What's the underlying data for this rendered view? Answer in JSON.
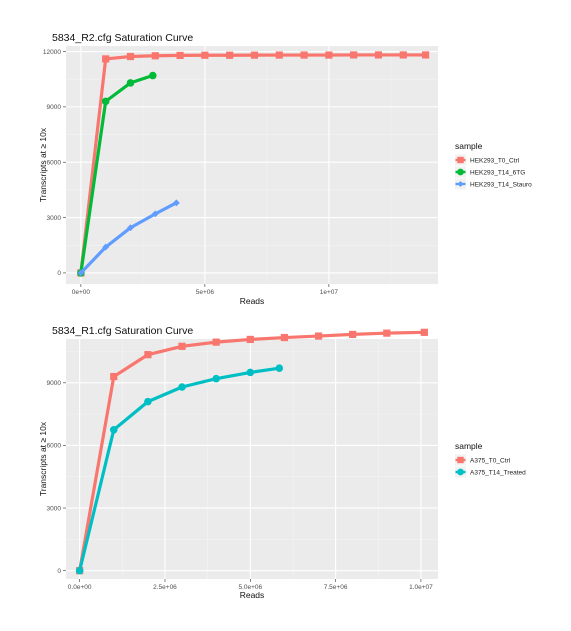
{
  "chart_data": [
    {
      "type": "line",
      "title": "5834_R2.cfg Saturation Curve",
      "xlabel": "Reads",
      "ylabel": "Transcripts at ≥ 10x",
      "xlim": [
        -600000,
        14400000
      ],
      "ylim": [
        -600,
        12300
      ],
      "xticks": [
        0,
        5000000,
        10000000
      ],
      "xtick_labels": [
        "0e+00",
        "5e+06",
        "1e+07"
      ],
      "yticks": [
        0,
        3000,
        6000,
        9000,
        12000
      ],
      "ytick_labels": [
        "0",
        "3000",
        "6000",
        "9000",
        "12000"
      ],
      "grid": true,
      "legend": {
        "title": "sample",
        "position": "right"
      },
      "series": [
        {
          "name": "HEK293_T0_Ctrl",
          "color": "#F8766D",
          "marker": "square",
          "x": [
            0,
            1000000,
            2000000,
            3000000,
            4000000,
            5000000,
            6000000,
            7000000,
            8000000,
            9000000,
            10000000,
            11000000,
            12000000,
            13000000,
            13900000
          ],
          "y": [
            0,
            11600,
            11730,
            11770,
            11790,
            11800,
            11800,
            11805,
            11810,
            11810,
            11810,
            11815,
            11815,
            11815,
            11815
          ]
        },
        {
          "name": "HEK293_T14_6TG",
          "color": "#00BA38",
          "marker": "circle",
          "x": [
            0,
            1000000,
            2000000,
            2900000
          ],
          "y": [
            0,
            9300,
            10300,
            10700
          ]
        },
        {
          "name": "HEK293_T14_Stauro",
          "color": "#619CFF",
          "marker": "diamond",
          "x": [
            0,
            1000000,
            2000000,
            3000000,
            3850000
          ],
          "y": [
            0,
            1400,
            2450,
            3200,
            3800
          ]
        }
      ]
    },
    {
      "type": "line",
      "title": "5834_R1.cfg Saturation Curve",
      "xlabel": "Reads",
      "ylabel": "Transcripts at ≥ 10x",
      "xlim": [
        -400000,
        10500000
      ],
      "ylim": [
        -400,
        11100
      ],
      "xticks": [
        0,
        2500000,
        5000000,
        7500000,
        10000000
      ],
      "xtick_labels": [
        "0.0e+00",
        "2.5e+06",
        "5.0e+06",
        "7.5e+06",
        "1.0e+07"
      ],
      "yticks": [
        0,
        3000,
        6000,
        9000
      ],
      "ytick_labels": [
        "0",
        "3000",
        "6000",
        "9000"
      ],
      "grid": true,
      "legend": {
        "title": "sample",
        "position": "right"
      },
      "series": [
        {
          "name": "A375_T0_Ctrl",
          "color": "#F8766D",
          "marker": "square",
          "x": [
            0,
            1000000,
            2000000,
            3000000,
            4000000,
            5000000,
            6000000,
            7000000,
            8000000,
            9000000,
            10100000
          ],
          "y": [
            0,
            9300,
            10350,
            10750,
            10950,
            11080,
            11170,
            11240,
            11320,
            11380,
            11420
          ]
        },
        {
          "name": "A375_T14_Treated",
          "color": "#00BFC4",
          "marker": "circle",
          "x": [
            0,
            1000000,
            2000000,
            3000000,
            4000000,
            5000000,
            5850000
          ],
          "y": [
            0,
            6750,
            8100,
            8800,
            9200,
            9500,
            9700
          ]
        }
      ]
    }
  ]
}
